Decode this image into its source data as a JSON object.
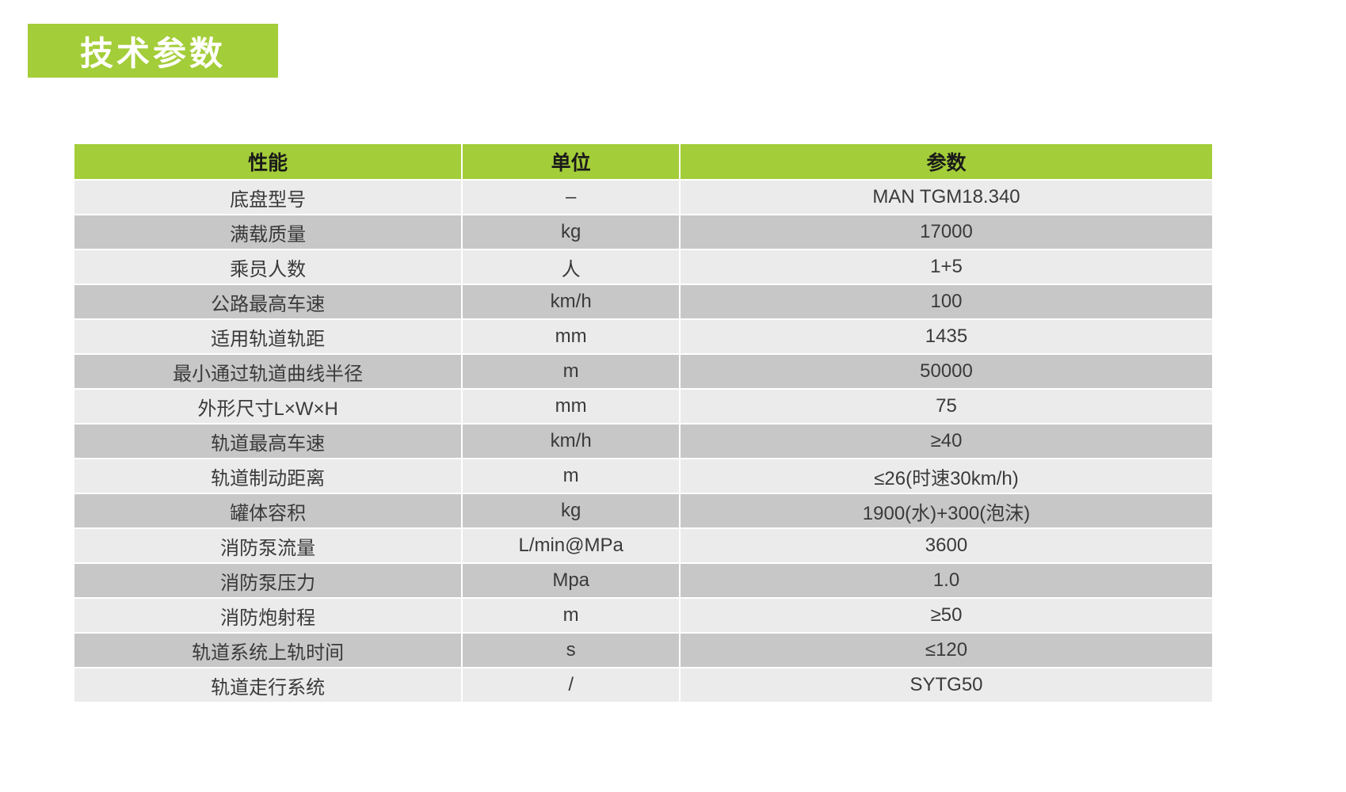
{
  "page": {
    "section_title": "技术参数"
  },
  "table": {
    "headers": [
      "性能",
      "单位",
      "参数"
    ],
    "rows": [
      {
        "property": "底盘型号",
        "unit": "–",
        "value": "MAN TGM18.340"
      },
      {
        "property": "满载质量",
        "unit": "kg",
        "value": "17000"
      },
      {
        "property": "乘员人数",
        "unit": "人",
        "value": "1+5"
      },
      {
        "property": "公路最高车速",
        "unit": "km/h",
        "value": "100"
      },
      {
        "property": "适用轨道轨距",
        "unit": "mm",
        "value": "1435"
      },
      {
        "property": "最小通过轨道曲线半径",
        "unit": "m",
        "value": "50000"
      },
      {
        "property": "外形尺寸L×W×H",
        "unit": "mm",
        "value": "75"
      },
      {
        "property": "轨道最高车速",
        "unit": "km/h",
        "value": "≥40"
      },
      {
        "property": "轨道制动距离",
        "unit": "m",
        "value": "≤26(时速30km/h)"
      },
      {
        "property": "罐体容积",
        "unit": "kg",
        "value": "1900(水)+300(泡沫)"
      },
      {
        "property": "消防泵流量",
        "unit": "L/min@MPa",
        "value": "3600"
      },
      {
        "property": "消防泵压力",
        "unit": "Mpa",
        "value": "1.0"
      },
      {
        "property": "消防炮射程",
        "unit": "m",
        "value": "≥50"
      },
      {
        "property": "轨道系统上轨时间",
        "unit": "s",
        "value": "≤120"
      },
      {
        "property": "轨道走行系统",
        "unit": "/",
        "value": "SYTG50"
      }
    ]
  },
  "colors": {
    "accent_green": "#a3cd39",
    "row_light": "#ebebeb",
    "row_dark": "#c7c7c7",
    "header_text": "#1a1a1a",
    "cell_text": "#3a3a3a"
  }
}
